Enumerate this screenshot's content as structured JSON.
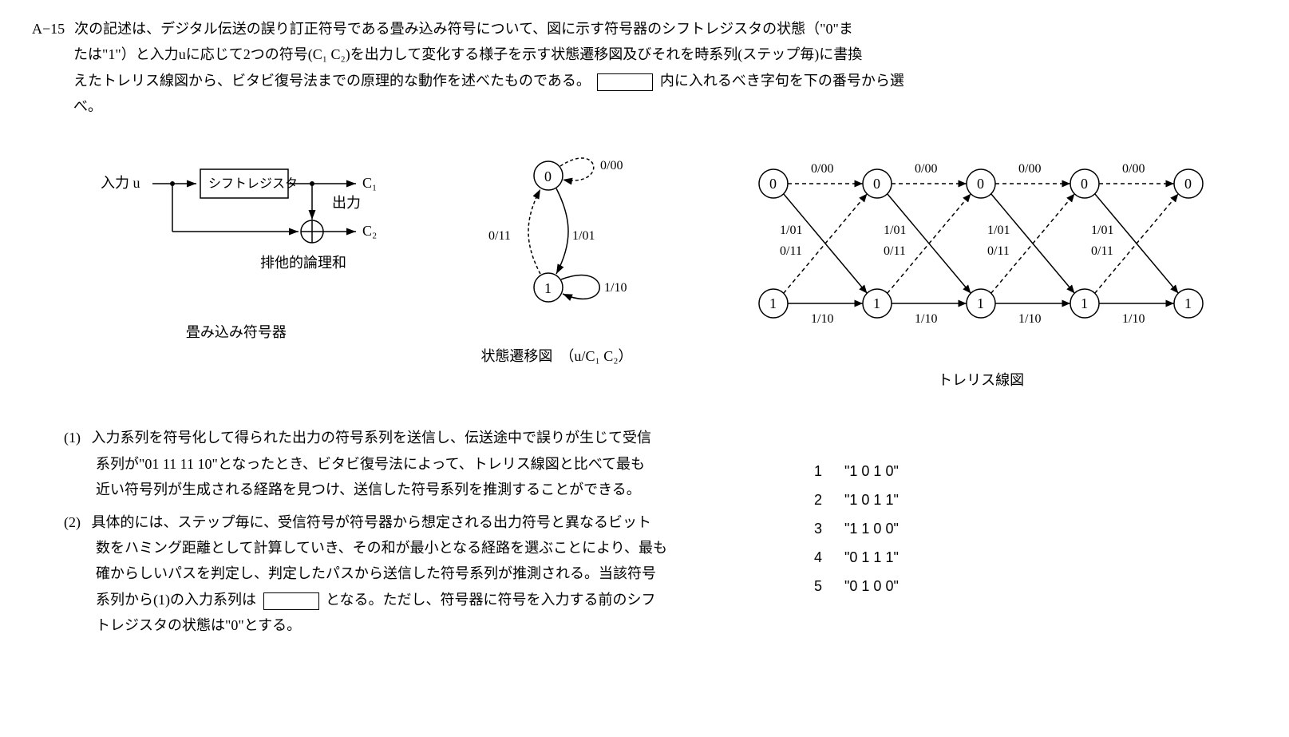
{
  "question": {
    "number": "A−15",
    "text_line1": "次の記述は、デジタル伝送の誤り訂正符号である畳み込み符号について、図に示す符号器のシフトレジスタの状態（\"0\"ま",
    "text_line2": "たは\"1\"）と入力uに応じて2つの符号(C₁ C₂)を出力して変化する様子を示す状態遷移図及びそれを時系列(ステップ毎)に書換",
    "text_line3": "えたトレリス線図から、ビタビ復号法までの原理的な動作を述べたものである。",
    "text_line3b": "内に入れるべき字句を下の番号から選",
    "text_line4": "べ。"
  },
  "encoder": {
    "caption": "畳み込み符号器",
    "input_label": "入力 u",
    "register_label": "シフトレジスタ",
    "output_label": "出力",
    "c1": "C₁",
    "c2": "C₂",
    "xor_label": "排他的論理和"
  },
  "state_diagram": {
    "caption": "状態遷移図　（u/C₁ C₂）",
    "state0": "0",
    "state1": "1",
    "edge_00": "0/00",
    "edge_011": "0/11",
    "edge_101": "1/01",
    "edge_110": "1/10"
  },
  "trellis": {
    "caption": "トレリス線図",
    "top_label": "0/00",
    "label_101": "1/01",
    "label_011": "0/11",
    "bottom_label": "1/10",
    "node0": "0",
    "node1": "1"
  },
  "paragraphs": {
    "p1_num": "(1)",
    "p1_l1": "入力系列を符号化して得られた出力の符号系列を送信し、伝送途中で誤りが生じて受信",
    "p1_l2": "系列が\"01 11 11 10\"となったとき、ビタビ復号法によって、トレリス線図と比べて最も",
    "p1_l3": "近い符号列が生成される経路を見つけ、送信した符号系列を推測することができる。",
    "p2_num": "(2)",
    "p2_l1": "具体的には、ステップ毎に、受信符号が符号器から想定される出力符号と異なるビット",
    "p2_l2": "数をハミング距離として計算していき、その和が最小となる経路を選ぶことにより、最も",
    "p2_l3": "確からしいパスを判定し、判定したパスから送信した符号系列が推測される。当該符号",
    "p2_l4a": "系列から(1)の入力系列は",
    "p2_l4b": "となる。ただし、符号器に符号を入力する前のシフ",
    "p2_l5": "トレジスタの状態は\"0\"とする。"
  },
  "answers": [
    {
      "num": "1",
      "val": "\"1 0 1 0\""
    },
    {
      "num": "2",
      "val": "\"1 0 1 1\""
    },
    {
      "num": "3",
      "val": "\"1 1 0 0\""
    },
    {
      "num": "4",
      "val": "\"0 1 1 1\""
    },
    {
      "num": "5",
      "val": "\"0 1 0 0\""
    }
  ]
}
